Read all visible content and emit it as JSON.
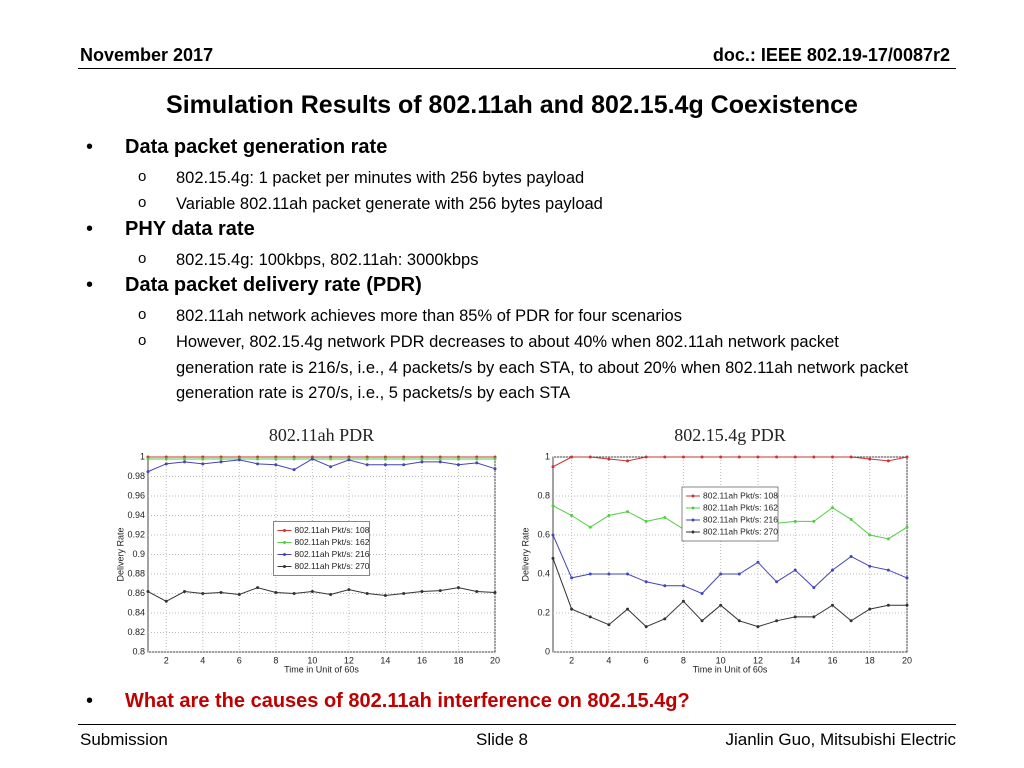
{
  "header": {
    "date": "November 2017",
    "doc": "doc.: IEEE 802.19-17/0087r2"
  },
  "title": "Simulation Results of 802.11ah and 802.15.4g Coexistence",
  "bullets": [
    {
      "text": "Data packet generation rate",
      "items": [
        "802.15.4g: 1 packet per minutes with 256 bytes payload",
        "Variable 802.11ah packet generate with 256 bytes payload"
      ]
    },
    {
      "text": "PHY data rate",
      "items": [
        "802.15.4g: 100kbps, 802.11ah: 3000kbps"
      ]
    },
    {
      "text": "Data packet delivery rate (PDR)",
      "items": [
        "802.11ah network achieves more than 85% of PDR for four scenarios",
        "However, 802.15.4g network PDR decreases to about 40% when 802.11ah network packet generation rate is 216/s, i.e., 4 packets/s by each STA, to about 20% when 802.11ah network packet generation rate is 270/s, i.e., 5 packets/s by each STA"
      ]
    }
  ],
  "question": "What are the causes of 802.11ah interference on 802.15.4g?",
  "footer": {
    "left": "Submission",
    "center": "Slide 8",
    "right": "Jianlin Guo, Mitsubishi Electric"
  },
  "chart_data": [
    {
      "type": "line",
      "title": "802.11ah PDR",
      "xlabel": "Time in Unit of 60s",
      "ylabel": "Delivery Rate",
      "x": [
        1,
        2,
        3,
        4,
        5,
        6,
        7,
        8,
        9,
        10,
        11,
        12,
        13,
        14,
        15,
        16,
        17,
        18,
        19,
        20
      ],
      "xlim": [
        1,
        20
      ],
      "xticks": [
        2,
        4,
        6,
        8,
        10,
        12,
        14,
        16,
        18,
        20
      ],
      "ylim": [
        0.8,
        1
      ],
      "yticks": [
        0.8,
        0.82,
        0.84,
        0.86,
        0.88,
        0.9,
        0.92,
        0.94,
        0.96,
        0.98,
        1
      ],
      "grid": true,
      "legend": "center",
      "series": [
        {
          "name": "802.11ah Pkt/s: 108",
          "color": "#cc3333",
          "values": [
            1,
            1,
            1,
            1,
            1,
            1,
            1,
            1,
            1,
            1,
            1,
            1,
            1,
            1,
            1,
            1,
            1,
            1,
            1,
            1
          ]
        },
        {
          "name": "802.11ah Pkt/s: 162",
          "color": "#55cc44",
          "values": [
            0.998,
            0.998,
            0.998,
            0.998,
            0.998,
            0.998,
            0.998,
            0.998,
            0.998,
            0.998,
            0.998,
            0.998,
            0.998,
            0.998,
            0.998,
            0.998,
            0.998,
            0.998,
            0.998,
            0.998
          ]
        },
        {
          "name": "802.11ah Pkt/s: 216",
          "color": "#4444bb",
          "values": [
            0.985,
            0.993,
            0.995,
            0.993,
            0.995,
            0.997,
            0.993,
            0.992,
            0.987,
            0.998,
            0.99,
            0.997,
            0.992,
            0.992,
            0.992,
            0.995,
            0.995,
            0.992,
            0.994,
            0.988
          ]
        },
        {
          "name": "802.11ah Pkt/s: 270",
          "color": "#333333",
          "values": [
            0.862,
            0.852,
            0.862,
            0.86,
            0.861,
            0.859,
            0.866,
            0.861,
            0.86,
            0.862,
            0.859,
            0.864,
            0.86,
            0.858,
            0.86,
            0.862,
            0.863,
            0.866,
            0.862,
            0.861
          ]
        }
      ]
    },
    {
      "type": "line",
      "title": "802.15.4g PDR",
      "xlabel": "Time in Unit of 60s",
      "ylabel": "Delivery Rate",
      "x": [
        1,
        2,
        3,
        4,
        5,
        6,
        7,
        8,
        9,
        10,
        11,
        12,
        13,
        14,
        15,
        16,
        17,
        18,
        19,
        20
      ],
      "xlim": [
        1,
        20
      ],
      "xticks": [
        2,
        4,
        6,
        8,
        10,
        12,
        14,
        16,
        18,
        20
      ],
      "ylim": [
        0,
        1
      ],
      "yticks": [
        0,
        0.2,
        0.4,
        0.6,
        0.8,
        1
      ],
      "grid": true,
      "legend": "upper center",
      "series": [
        {
          "name": "802.11ah Pkt/s: 108",
          "color": "#cc3333",
          "values": [
            0.95,
            1,
            1,
            0.99,
            0.98,
            1,
            1,
            1,
            1,
            1,
            1,
            1,
            1,
            1,
            1,
            1,
            1,
            0.99,
            0.98,
            1
          ]
        },
        {
          "name": "802.11ah Pkt/s: 162",
          "color": "#55cc44",
          "values": [
            0.75,
            0.7,
            0.64,
            0.7,
            0.72,
            0.67,
            0.69,
            0.63,
            0.63,
            0.65,
            0.66,
            0.7,
            0.66,
            0.67,
            0.67,
            0.74,
            0.68,
            0.6,
            0.58,
            0.64
          ]
        },
        {
          "name": "802.11ah Pkt/s: 216",
          "color": "#4444bb",
          "values": [
            0.6,
            0.38,
            0.4,
            0.4,
            0.4,
            0.36,
            0.34,
            0.34,
            0.3,
            0.4,
            0.4,
            0.46,
            0.36,
            0.42,
            0.33,
            0.42,
            0.49,
            0.44,
            0.42,
            0.38
          ]
        },
        {
          "name": "802.11ah Pkt/s: 270",
          "color": "#333333",
          "values": [
            0.48,
            0.22,
            0.18,
            0.14,
            0.22,
            0.13,
            0.17,
            0.26,
            0.16,
            0.24,
            0.16,
            0.13,
            0.16,
            0.18,
            0.18,
            0.24,
            0.16,
            0.22,
            0.24,
            0.24
          ]
        }
      ]
    }
  ]
}
